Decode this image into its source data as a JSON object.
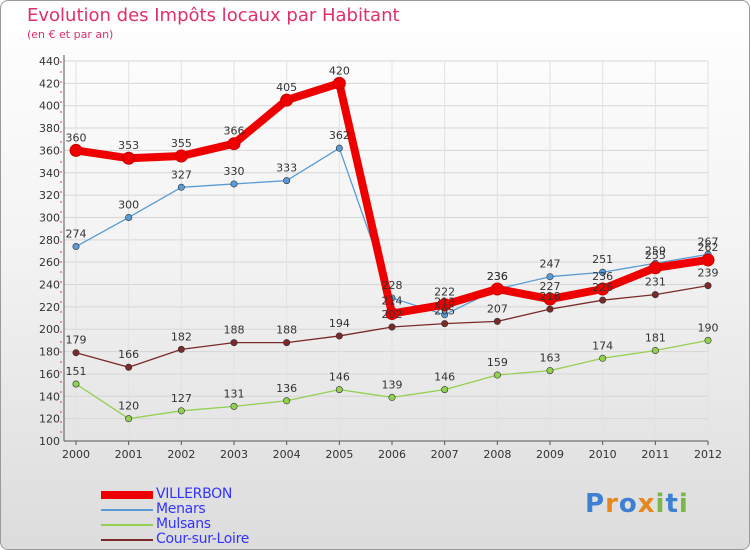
{
  "chart_data": {
    "type": "line",
    "title": "Evolution des Impôts locaux par Habitant",
    "subtitle": "(en € et par an)",
    "xlabel": "",
    "ylabel": "",
    "x": [
      "2000",
      "2001",
      "2002",
      "2003",
      "2004",
      "2005",
      "2006",
      "2007",
      "2008",
      "2009",
      "2010",
      "2011",
      "2012"
    ],
    "ylim": [
      100,
      440
    ],
    "yticks": [
      100,
      120,
      140,
      160,
      180,
      200,
      220,
      240,
      260,
      280,
      300,
      320,
      340,
      360,
      380,
      400,
      420,
      440
    ],
    "grid": true,
    "legend_position": "bottom-left",
    "series": [
      {
        "name": "VILLERBON",
        "color": "#ee0000",
        "values": [
          360,
          353,
          355,
          366,
          405,
          420,
          214,
          222,
          236,
          227,
          236,
          255,
          262
        ]
      },
      {
        "name": "Menars",
        "color": "#5a9bd5",
        "values": [
          274,
          300,
          327,
          330,
          333,
          362,
          228,
          213,
          236,
          247,
          251,
          259,
          267
        ]
      },
      {
        "name": "Mulsans",
        "color": "#92d050",
        "values": [
          151,
          120,
          127,
          131,
          136,
          146,
          139,
          146,
          159,
          163,
          174,
          181,
          190
        ]
      },
      {
        "name": "Cour-sur-Loire",
        "color": "#7b2a2a",
        "values": [
          179,
          166,
          182,
          188,
          188,
          194,
          202,
          205,
          207,
          218,
          226,
          231,
          239
        ]
      }
    ]
  },
  "legend": {
    "items": [
      {
        "label": "VILLERBON",
        "color": "#ee0000",
        "text_color": "#3333ff"
      },
      {
        "label": "Menars",
        "color": "#5a9bd5",
        "text_color": "#3333ff"
      },
      {
        "label": "Mulsans",
        "color": "#92d050",
        "text_color": "#3333ff"
      },
      {
        "label": "Cour-sur-Loire",
        "color": "#7b2a2a",
        "text_color": "#3333ff"
      }
    ]
  },
  "logo": {
    "letters": [
      "P",
      "r",
      "o",
      "x",
      "i",
      "t",
      "i"
    ],
    "colors": [
      "#3d7fd0",
      "#e8871e",
      "#3d7fd0",
      "#e8871e",
      "#7ab648",
      "#3d7fd0",
      "#7ab648"
    ]
  }
}
